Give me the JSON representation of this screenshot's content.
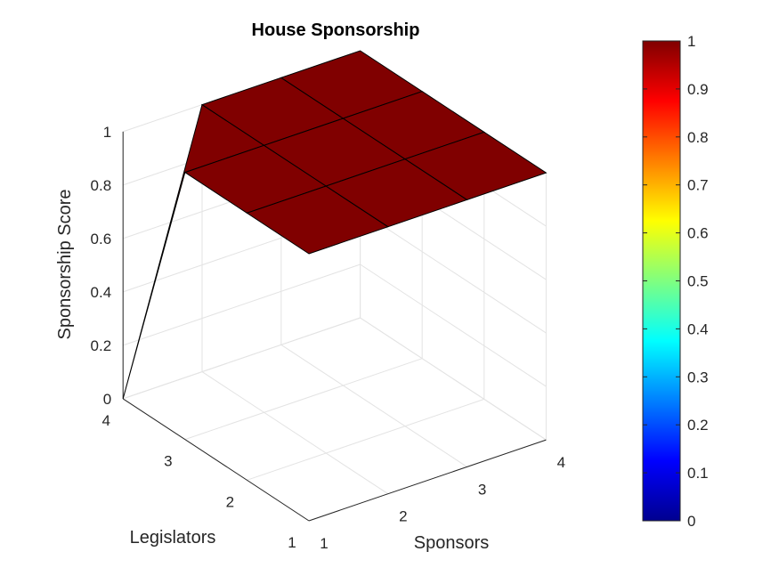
{
  "chart_data": {
    "type": "surface",
    "title": "House Sponsorship",
    "xlabel": "Sponsors",
    "ylabel": "Legislators",
    "zlabel": "Sponsorship Score",
    "x": [
      1,
      2,
      3,
      4
    ],
    "y": [
      1,
      2,
      3,
      4
    ],
    "z": [
      [
        1,
        1,
        1,
        1
      ],
      [
        1,
        1,
        1,
        1
      ],
      [
        1,
        1,
        1,
        1
      ],
      [
        0,
        1,
        1,
        1
      ]
    ],
    "xlim": [
      1,
      4
    ],
    "ylim": [
      1,
      4
    ],
    "zlim": [
      0,
      1
    ],
    "x_ticks": [
      "1",
      "2",
      "3",
      "4"
    ],
    "y_ticks": [
      "1",
      "2",
      "3",
      "4"
    ],
    "z_ticks": [
      "0",
      "0.2",
      "0.4",
      "0.6",
      "0.8",
      "1"
    ],
    "grid": true,
    "colormap": "jet",
    "colorbar": {
      "range": [
        0,
        1
      ],
      "ticks": [
        "0",
        "0.1",
        "0.2",
        "0.3",
        "0.4",
        "0.5",
        "0.6",
        "0.7",
        "0.8",
        "0.9",
        "1"
      ]
    },
    "colors": {
      "low": "#00008f",
      "high": "#800000",
      "edge": "#000000"
    }
  }
}
